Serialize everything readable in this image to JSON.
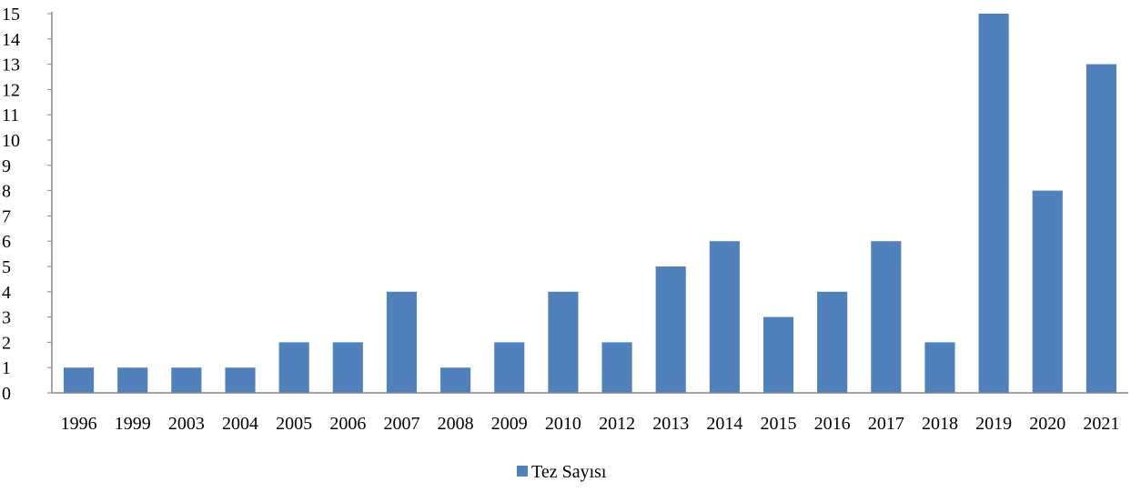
{
  "chart_data": {
    "type": "bar",
    "categories": [
      "1996",
      "1999",
      "2003",
      "2004",
      "2005",
      "2006",
      "2007",
      "2008",
      "2009",
      "2010",
      "2012",
      "2013",
      "2014",
      "2015",
      "2016",
      "2017",
      "2018",
      "2019",
      "2020",
      "2021"
    ],
    "series": [
      {
        "name": "Tez Sayısı",
        "values": [
          1,
          1,
          1,
          1,
          2,
          2,
          4,
          1,
          2,
          4,
          2,
          5,
          6,
          3,
          4,
          6,
          2,
          15,
          8,
          13
        ],
        "color": "#4F81BD"
      }
    ],
    "title": "",
    "xlabel": "",
    "ylabel": "",
    "ylim": [
      0,
      15
    ],
    "yticks": [
      "0",
      "1",
      "2",
      "3",
      "4",
      "5",
      "6",
      "7",
      "8",
      "9",
      "10",
      "11",
      "12",
      "13",
      "14",
      "15"
    ],
    "grid": false,
    "legend": "bottom-center"
  }
}
